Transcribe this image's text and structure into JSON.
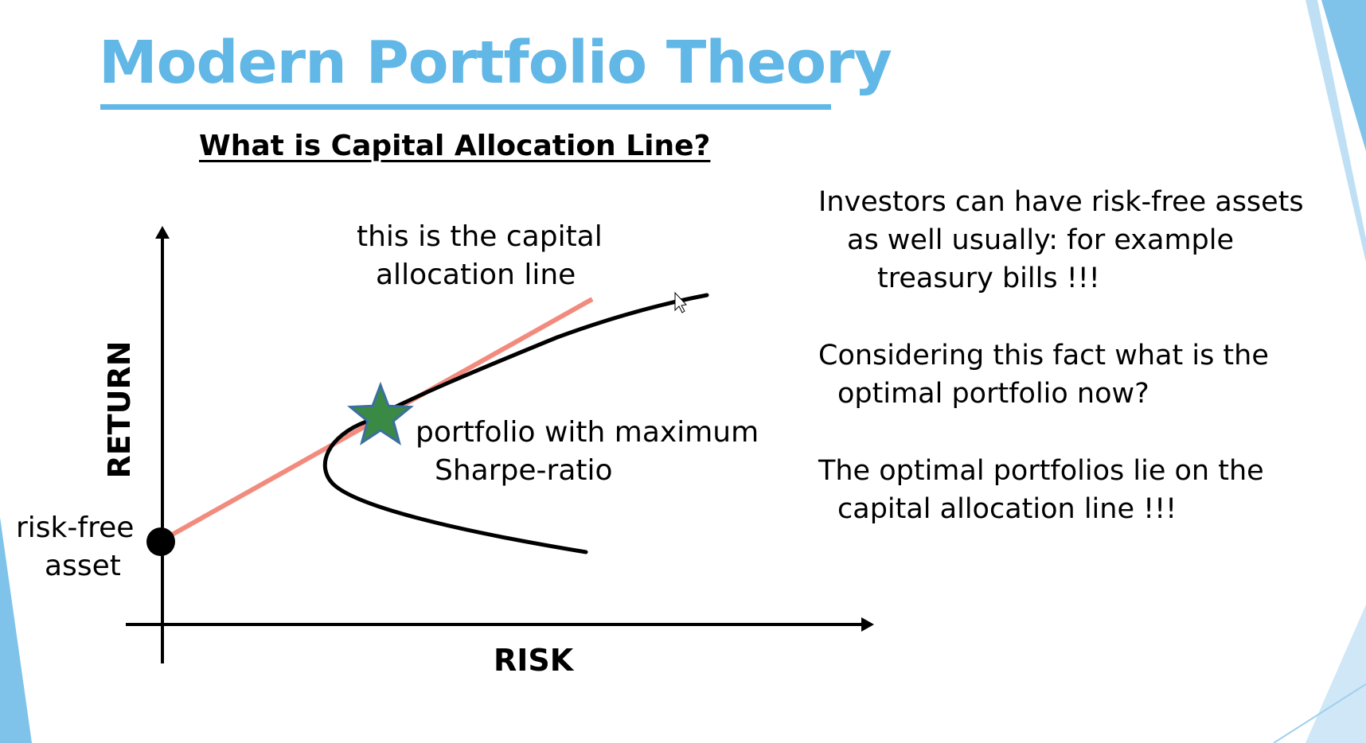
{
  "slide": {
    "title": "Modern Portfolio Theory",
    "subtitle": "What is Capital Allocation Line?",
    "accent_color": "#61b7e6"
  },
  "diagram": {
    "y_axis_label": "RETURN",
    "x_axis_label": "RISK",
    "cal_label_line1": "this is the capital",
    "cal_label_line2": "allocation line",
    "risk_free_label_line1": "risk-free",
    "risk_free_label_line2": "asset",
    "star_label_line1": "portfolio with maximum",
    "star_label_line2": "Sharpe-ratio",
    "cal_color": "#f28b7e",
    "frontier_color": "#000000",
    "star_color": "#3a8a45",
    "star_outline_color": "#3b6fa0",
    "marker_icons": [
      "risk-free-asset-dot",
      "max-sharpe-star-icon"
    ]
  },
  "notes": [
    {
      "lines": [
        "Investors can have risk-free assets",
        "as well usually: for example",
        "treasury bills !!!"
      ]
    },
    {
      "lines": [
        "Considering this fact what is the",
        "optimal portfolio now?"
      ]
    },
    {
      "lines": [
        "The optimal portfolios lie on the",
        "capital allocation line !!!"
      ]
    }
  ]
}
